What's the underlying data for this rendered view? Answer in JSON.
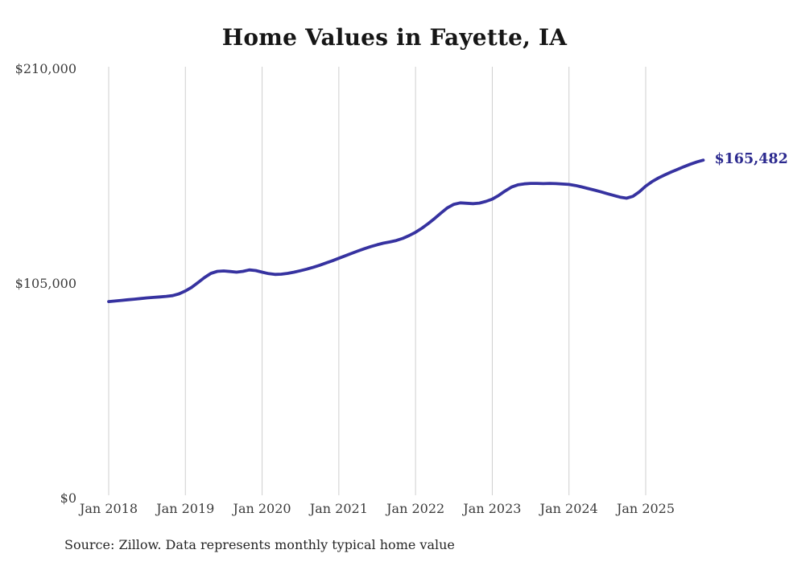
{
  "chart_data": {
    "type": "line",
    "title": "Home Values in Fayette, IA",
    "source_note": "Source: Zillow. Data represents monthly typical home value",
    "end_label": "$165,482",
    "final_value": 165482,
    "ylim": [
      0,
      210000
    ],
    "grid": "vertical-only",
    "line_color": "#3632a0",
    "end_label_color": "#2c2a8f",
    "gridline_color": "#cfcfcf",
    "y_ticks": [
      {
        "label": "$210,000",
        "value": 210000
      },
      {
        "label": "$105,000",
        "value": 105000
      },
      {
        "label": "$0",
        "value": 0
      }
    ],
    "x_ticks": [
      {
        "label": "Jan 2018",
        "month_index": 0
      },
      {
        "label": "Jan 2019",
        "month_index": 12
      },
      {
        "label": "Jan 2020",
        "month_index": 24
      },
      {
        "label": "Jan 2021",
        "month_index": 36
      },
      {
        "label": "Jan 2022",
        "month_index": 48
      },
      {
        "label": "Jan 2023",
        "month_index": 60
      },
      {
        "label": "Jan 2024",
        "month_index": 72
      },
      {
        "label": "Jan 2025",
        "month_index": 84
      }
    ],
    "series": [
      {
        "name": "Typical home value",
        "start_month": "2018-01",
        "frequency": "monthly",
        "values": [
          96300,
          96600,
          96900,
          97200,
          97500,
          97800,
          98100,
          98350,
          98600,
          98850,
          99200,
          100100,
          101500,
          103300,
          105700,
          108100,
          110100,
          111100,
          111300,
          111000,
          110700,
          111100,
          111800,
          111500,
          110700,
          110000,
          109600,
          109700,
          110100,
          110700,
          111400,
          112200,
          113100,
          114100,
          115200,
          116300,
          117500,
          118700,
          119900,
          121100,
          122200,
          123200,
          124100,
          124900,
          125500,
          126200,
          127200,
          128600,
          130200,
          132200,
          134500,
          137000,
          139700,
          142200,
          143900,
          144600,
          144400,
          144200,
          144500,
          145300,
          146400,
          148200,
          150400,
          152300,
          153400,
          153900,
          154100,
          154100,
          154000,
          154100,
          154000,
          153800,
          153600,
          153100,
          152400,
          151600,
          150800,
          150000,
          149100,
          148200,
          147400,
          146900,
          147800,
          150000,
          152800,
          155000,
          156800,
          158300,
          159700,
          161000,
          162300,
          163500,
          164600,
          165482
        ]
      }
    ]
  }
}
